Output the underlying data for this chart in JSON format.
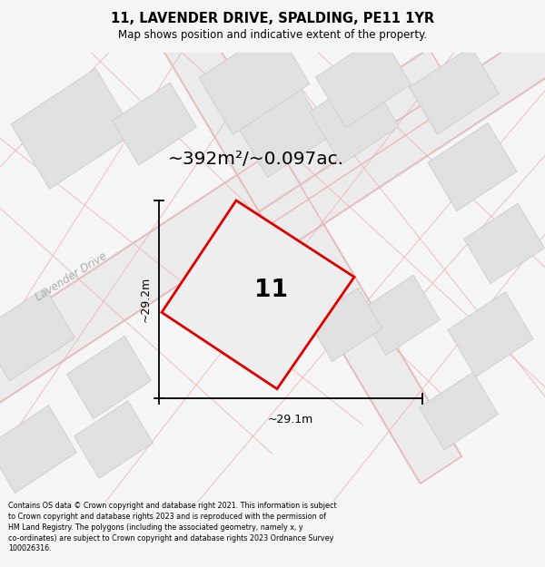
{
  "title": "11, LAVENDER DRIVE, SPALDING, PE11 1YR",
  "subtitle": "Map shows position and indicative extent of the property.",
  "area_text": "~392m²/~0.097ac.",
  "width_label": "~29.1m",
  "height_label": "~29.2m",
  "property_number": "11",
  "road_label": "Lavender Drive",
  "footer_line1": "Contains OS data © Crown copyright and database right 2021. This information is subject",
  "footer_line2": "to Crown copyright and database rights 2023 and is reproduced with the permission of",
  "footer_line3": "HM Land Registry. The polygons (including the associated geometry, namely x, y",
  "footer_line4": "co-ordinates) are subject to Crown copyright and database rights 2023 Ordnance Survey",
  "footer_line5": "100026316.",
  "bg_color": "#f5f5f5",
  "map_bg": "#ffffff",
  "red_line": "#dd0000",
  "pink_road": "#f0b0b0",
  "black": "#000000",
  "gray_build": "#e0e0e0",
  "gray_build_edge": "#cccccc",
  "road_gray": "#ebebeb",
  "road_gray_edge": "#d8d8d8"
}
